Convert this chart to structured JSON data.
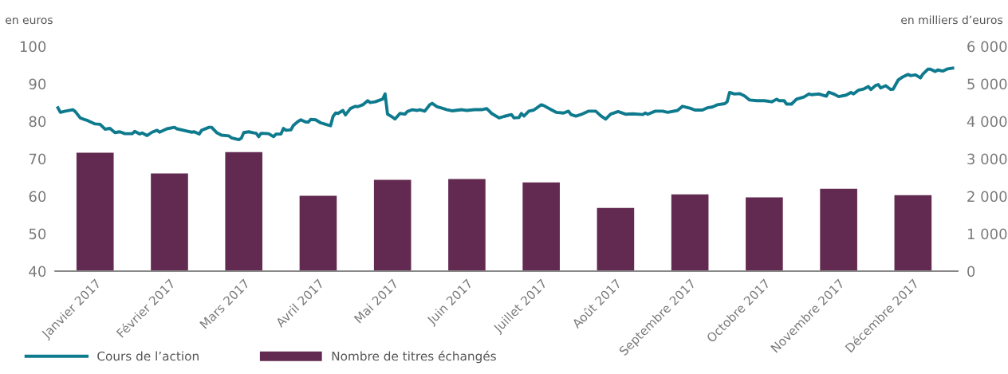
{
  "chart_data": {
    "type": "bar",
    "xlim": [
      "2017-01-01",
      "2017-12-31"
    ],
    "xticks": [
      {
        "value": "2017-01-17",
        "label": "Janvier 2017"
      },
      {
        "value": "2017-02-16",
        "label": "Février 2017"
      },
      {
        "value": "2017-03-18",
        "label": "Mars 2017"
      },
      {
        "value": "2017-04-17",
        "label": "Avril 2017"
      },
      {
        "value": "2017-05-17",
        "label": "Mai 2017"
      },
      {
        "value": "2017-06-16",
        "label": "Juin 2017"
      },
      {
        "value": "2017-07-16",
        "label": "Juillet 2017"
      },
      {
        "value": "2017-08-15",
        "label": "Août 2017"
      },
      {
        "value": "2017-09-14",
        "label": "Septembre 2017"
      },
      {
        "value": "2017-10-14",
        "label": "Octobre 2017"
      },
      {
        "value": "2017-11-13",
        "label": "Novembre 2017"
      },
      {
        "value": "2017-12-13",
        "label": "Décembre 2017"
      }
    ],
    "ylabel": "en euros",
    "y2label": "en milliers d’euros",
    "ylim": [
      40,
      100
    ],
    "yticks": [
      40,
      50,
      60,
      70,
      80,
      90,
      100
    ],
    "y2lim": [
      0,
      6000
    ],
    "y2ticks": [
      0,
      {
        "value": 1000,
        "label": "1 000"
      },
      {
        "value": 2000,
        "label": "2 000"
      },
      {
        "value": 3000,
        "label": "3 000"
      },
      {
        "value": 4000,
        "label": "4 000"
      },
      {
        "value": 5000,
        "label": "5 000"
      },
      {
        "value": 6000,
        "label": "6 000"
      }
    ],
    "grid": false,
    "legend": "bottom left",
    "series": [
      {
        "name": "Cours de l’action",
        "type": "line",
        "color": "#0e7a8e",
        "marker": "none",
        "line_style": "solid",
        "x": [
          "2017-01-02",
          "2017-01-03",
          "2017-01-05",
          "2017-01-08",
          "2017-01-09",
          "2017-01-11",
          "2017-01-13",
          "2017-01-14",
          "2017-01-17",
          "2017-01-19",
          "2017-01-21",
          "2017-01-23",
          "2017-01-25",
          "2017-01-27",
          "2017-01-29",
          "2017-02-01",
          "2017-02-02",
          "2017-02-04",
          "2017-02-05",
          "2017-02-07",
          "2017-02-09",
          "2017-02-11",
          "2017-02-12",
          "2017-02-15",
          "2017-02-18",
          "2017-02-19",
          "2017-02-23",
          "2017-02-25",
          "2017-02-26",
          "2017-02-28",
          "2017-03-01",
          "2017-03-04",
          "2017-03-05",
          "2017-03-07",
          "2017-03-09",
          "2017-03-12",
          "2017-03-13",
          "2017-03-16",
          "2017-03-17",
          "2017-03-18",
          "2017-03-20",
          "2017-03-22",
          "2017-03-23",
          "2017-03-24",
          "2017-03-25",
          "2017-03-28",
          "2017-03-30",
          "2017-03-31",
          "2017-04-02",
          "2017-04-03",
          "2017-04-04",
          "2017-04-06",
          "2017-04-07",
          "2017-04-09",
          "2017-04-10",
          "2017-04-12",
          "2017-04-13",
          "2017-04-14",
          "2017-04-16",
          "2017-04-18",
          "2017-04-20",
          "2017-04-22",
          "2017-04-23",
          "2017-04-24",
          "2017-04-25",
          "2017-04-27",
          "2017-04-28",
          "2017-04-30",
          "2017-05-02",
          "2017-05-03",
          "2017-05-05",
          "2017-05-07",
          "2017-05-08",
          "2017-05-10",
          "2017-05-12",
          "2017-05-13",
          "2017-05-14",
          "2017-05-15",
          "2017-05-17",
          "2017-05-18",
          "2017-05-20",
          "2017-05-22",
          "2017-05-23",
          "2017-05-25",
          "2017-05-27",
          "2017-05-28",
          "2017-05-30",
          "2017-06-01",
          "2017-06-02",
          "2017-06-04",
          "2017-06-06",
          "2017-06-08",
          "2017-06-10",
          "2017-06-14",
          "2017-06-16",
          "2017-06-19",
          "2017-06-22",
          "2017-06-24",
          "2017-06-26",
          "2017-06-29",
          "2017-07-01",
          "2017-07-04",
          "2017-07-05",
          "2017-07-07",
          "2017-07-08",
          "2017-07-09",
          "2017-07-11",
          "2017-07-13",
          "2017-07-16",
          "2017-07-17",
          "2017-07-20",
          "2017-07-22",
          "2017-07-25",
          "2017-07-27",
          "2017-07-28",
          "2017-07-30",
          "2017-08-01",
          "2017-08-04",
          "2017-08-07",
          "2017-08-09",
          "2017-08-11",
          "2017-08-13",
          "2017-08-16",
          "2017-08-19",
          "2017-08-22",
          "2017-08-26",
          "2017-08-27",
          "2017-08-28",
          "2017-08-31",
          "2017-09-03",
          "2017-09-05",
          "2017-09-09",
          "2017-09-11",
          "2017-09-14",
          "2017-09-16",
          "2017-09-19",
          "2017-09-21",
          "2017-09-23",
          "2017-09-25",
          "2017-09-28",
          "2017-09-29",
          "2017-09-30",
          "2017-10-02",
          "2017-10-04",
          "2017-10-06",
          "2017-10-08",
          "2017-10-11",
          "2017-10-14",
          "2017-10-17",
          "2017-10-19",
          "2017-10-20",
          "2017-10-22",
          "2017-10-23",
          "2017-10-25",
          "2017-10-27",
          "2017-10-30",
          "2017-11-01",
          "2017-11-02",
          "2017-11-05",
          "2017-11-08",
          "2017-11-09",
          "2017-11-11",
          "2017-11-13",
          "2017-11-16",
          "2017-11-18",
          "2017-11-19",
          "2017-11-21",
          "2017-11-23",
          "2017-11-25",
          "2017-11-26",
          "2017-11-28",
          "2017-11-29",
          "2017-11-30",
          "2017-12-02",
          "2017-12-04",
          "2017-12-05",
          "2017-12-07",
          "2017-12-09",
          "2017-12-11",
          "2017-12-12",
          "2017-12-14",
          "2017-12-16",
          "2017-12-17",
          "2017-12-19",
          "2017-12-20",
          "2017-12-22",
          "2017-12-23",
          "2017-12-25",
          "2017-12-27",
          "2017-12-29"
        ],
        "values": [
          83.6,
          82.4,
          82.7,
          83.1,
          82.6,
          80.9,
          80.4,
          80.2,
          79.3,
          79.2,
          77.9,
          78.1,
          77.0,
          77.2,
          76.7,
          76.7,
          77.3,
          76.6,
          76.9,
          76.2,
          77.1,
          77.6,
          77.1,
          78.0,
          78.4,
          78.0,
          77.4,
          77.1,
          77.2,
          76.6,
          77.6,
          78.4,
          78.4,
          77.0,
          76.3,
          76.1,
          75.6,
          75.1,
          75.5,
          77.0,
          77.2,
          76.9,
          76.8,
          75.9,
          76.8,
          76.7,
          75.9,
          76.6,
          76.6,
          78.1,
          77.6,
          77.7,
          78.9,
          80.0,
          80.4,
          79.8,
          79.8,
          80.5,
          80.4,
          79.6,
          79.2,
          78.8,
          81.3,
          82.2,
          82.1,
          82.9,
          81.7,
          83.4,
          84.0,
          83.9,
          84.4,
          85.5,
          85.0,
          85.2,
          85.7,
          85.9,
          87.3,
          81.9,
          81.1,
          80.6,
          82.1,
          81.9,
          82.6,
          83.1,
          82.9,
          83.1,
          82.7,
          84.4,
          84.8,
          83.9,
          83.5,
          83.1,
          82.8,
          83.1,
          82.9,
          83.1,
          83.1,
          83.4,
          82.1,
          80.9,
          81.3,
          81.8,
          80.9,
          81.0,
          82.1,
          81.4,
          82.7,
          83.0,
          84.4,
          84.2,
          83.1,
          82.4,
          82.2,
          82.7,
          81.8,
          81.4,
          81.8,
          82.7,
          82.7,
          81.5,
          80.6,
          81.9,
          82.6,
          81.9,
          82.0,
          81.8,
          82.2,
          81.9,
          82.7,
          82.7,
          82.4,
          82.9,
          84.0,
          83.5,
          83.0,
          83.0,
          83.6,
          83.8,
          84.4,
          84.7,
          85.2,
          87.7,
          87.3,
          87.4,
          86.8,
          85.7,
          85.5,
          85.5,
          85.2,
          85.9,
          85.5,
          85.5,
          84.6,
          84.6,
          85.9,
          86.5,
          87.3,
          87.1,
          87.3,
          86.7,
          87.8,
          87.3,
          86.6,
          87.0,
          87.7,
          87.3,
          88.3,
          88.6,
          89.3,
          88.5,
          89.6,
          89.8,
          88.9,
          89.5,
          88.5,
          88.6,
          91.0,
          91.9,
          92.5,
          92.2,
          92.4,
          91.6,
          92.6,
          93.9,
          93.9,
          93.3,
          93.7,
          93.4,
          94.0,
          94.2
        ]
      },
      {
        "name": "Nombre de titres échangés",
        "axis": "y2",
        "color": "#622a50",
        "x": [
          "2017-01-17",
          "2017-02-16",
          "2017-03-18",
          "2017-04-17",
          "2017-05-17",
          "2017-06-16",
          "2017-07-16",
          "2017-08-15",
          "2017-09-14",
          "2017-10-14",
          "2017-11-13",
          "2017-12-13"
        ],
        "values": [
          3160,
          2610,
          3180,
          2010,
          2440,
          2460,
          2370,
          1690,
          2050,
          1970,
          2200,
          2030
        ]
      }
    ]
  }
}
